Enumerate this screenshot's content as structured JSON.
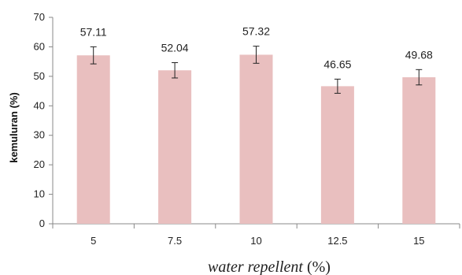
{
  "chart_data": {
    "type": "bar",
    "categories": [
      "5",
      "7.5",
      "10",
      "12.5",
      "15"
    ],
    "values": [
      57.11,
      52.04,
      57.32,
      46.65,
      49.68
    ],
    "error": [
      2.9,
      2.6,
      2.9,
      2.4,
      2.6
    ],
    "data_labels": [
      "57.11",
      "52.04",
      "57.32",
      "46.65",
      "49.68"
    ],
    "xlabel_italic": "water repellent",
    "xlabel_rest": " (%)",
    "ylabel": "kemuluran (%)",
    "ylim": [
      0,
      70
    ],
    "yticks": [
      0,
      10,
      20,
      30,
      40,
      50,
      60,
      70
    ],
    "grid": false,
    "legend": "none",
    "bar_color": "#e9bfbf",
    "axis_color": "#888888",
    "errorbar_color": "#222222"
  }
}
